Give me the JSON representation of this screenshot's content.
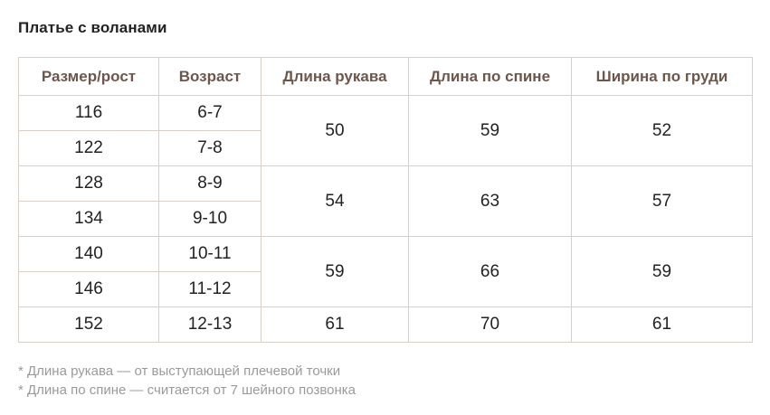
{
  "title": "Платье с воланами",
  "table": {
    "headers": [
      "Размер/рост",
      "Возраст",
      "Длина рукава",
      "Длина по спине",
      "Ширина по груди"
    ],
    "rows": [
      {
        "size": "116",
        "age": "6-7"
      },
      {
        "size": "122",
        "age": "7-8"
      },
      {
        "size": "128",
        "age": "8-9"
      },
      {
        "size": "134",
        "age": "9-10"
      },
      {
        "size": "140",
        "age": "10-11"
      },
      {
        "size": "146",
        "age": "11-12"
      },
      {
        "size": "152",
        "age": "12-13"
      }
    ],
    "groups": [
      {
        "sleeve": "50",
        "back": "59",
        "chest": "52"
      },
      {
        "sleeve": "54",
        "back": "63",
        "chest": "57"
      },
      {
        "sleeve": "59",
        "back": "66",
        "chest": "59"
      },
      {
        "sleeve": "61",
        "back": "70",
        "chest": "61"
      }
    ]
  },
  "footnotes": [
    "* Длина рукава — от выступающей плечевой точки",
    "* Длина по спине — считается от 7 шейного позвонка"
  ],
  "colors": {
    "header_text": "#6f564b",
    "border": "#d9cfc9",
    "footnote_text": "#9a9a9a"
  }
}
